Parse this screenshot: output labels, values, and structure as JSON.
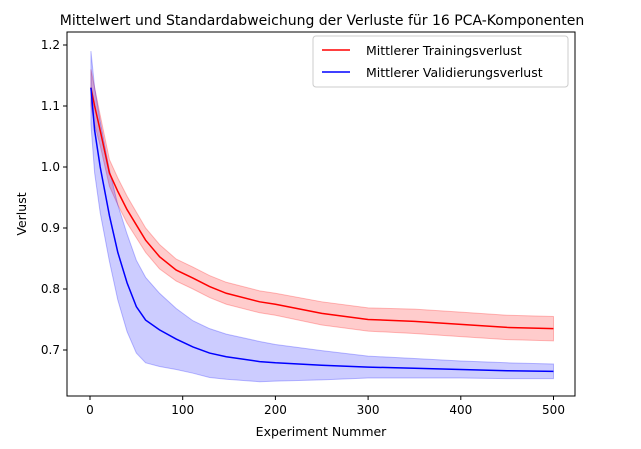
{
  "chart_data": {
    "type": "line",
    "title": "Mittelwert und Standardabweichung der Verluste für 16 PCA-Komponenten",
    "xlabel": "Experiment Nummer",
    "ylabel": "Verlust",
    "xlim": [
      -24,
      525
    ],
    "ylim": [
      0.625,
      1.225
    ],
    "xticks": [
      0,
      100,
      200,
      300,
      400,
      500
    ],
    "yticks": [
      0.7,
      0.8,
      0.9,
      1.0,
      1.1,
      1.2
    ],
    "grid": false,
    "legend": "top-right",
    "x": [
      1,
      5,
      11,
      21,
      30,
      40,
      50,
      60,
      75,
      93,
      111,
      129,
      147,
      183,
      200,
      250,
      300,
      350,
      400,
      450,
      500
    ],
    "series": [
      {
        "name": "Mittlerer Trainingsverlust",
        "color": "#ff0000",
        "mean": [
          1.13,
          1.1,
          1.06,
          0.99,
          0.96,
          0.93,
          0.905,
          0.88,
          0.853,
          0.831,
          0.818,
          0.804,
          0.793,
          0.779,
          0.775,
          0.76,
          0.75,
          0.747,
          0.742,
          0.737,
          0.735
        ],
        "std": [
          0.03,
          0.03,
          0.025,
          0.022,
          0.022,
          0.022,
          0.021,
          0.02,
          0.02,
          0.018,
          0.018,
          0.018,
          0.018,
          0.018,
          0.018,
          0.019,
          0.019,
          0.02,
          0.02,
          0.02,
          0.02
        ]
      },
      {
        "name": "Mittlerer Validierungsverlust",
        "color": "#0000ff",
        "mean": [
          1.13,
          1.06,
          1.0,
          0.92,
          0.86,
          0.81,
          0.771,
          0.749,
          0.733,
          0.718,
          0.705,
          0.695,
          0.689,
          0.681,
          0.679,
          0.675,
          0.672,
          0.67,
          0.668,
          0.666,
          0.665
        ],
        "std": [
          0.06,
          0.07,
          0.075,
          0.075,
          0.078,
          0.08,
          0.076,
          0.07,
          0.06,
          0.05,
          0.043,
          0.04,
          0.037,
          0.033,
          0.03,
          0.024,
          0.018,
          0.016,
          0.014,
          0.013,
          0.012
        ]
      }
    ]
  }
}
